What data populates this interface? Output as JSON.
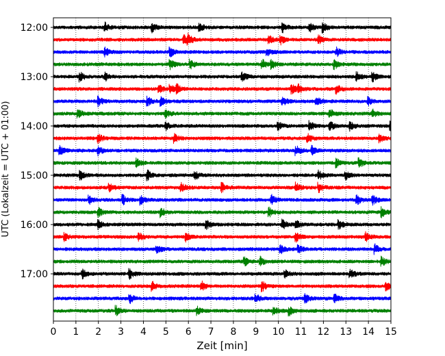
{
  "chart_data": {
    "type": "line",
    "title": "",
    "xlabel": "Zeit  [min]",
    "ylabel": "UTC (Lokalzeit = UTC + 01:00)",
    "xlim": [
      0,
      15
    ],
    "x_ticks": [
      0,
      1,
      2,
      3,
      4,
      5,
      6,
      7,
      8,
      9,
      10,
      11,
      12,
      13,
      14,
      15
    ],
    "x_tick_labels": [
      "0",
      "1",
      "2",
      "3",
      "4",
      "5",
      "6",
      "7",
      "8",
      "9",
      "10",
      "11",
      "12",
      "13",
      "14",
      "15"
    ],
    "y_tick_labels": [
      "12:00",
      "13:00",
      "14:00",
      "15:00",
      "16:00",
      "17:00"
    ],
    "grid": {
      "x": "dotted",
      "y": false
    },
    "traces_per_hour": 4,
    "trace_minutes": 15,
    "color_cycle": [
      "#000000",
      "#ff0000",
      "#0000ff",
      "#008000"
    ],
    "series": [
      {
        "start": "12:00",
        "events": [
          2.3,
          4.4,
          6.5,
          10.2,
          11.4,
          12.0
        ]
      },
      {
        "start": "12:15",
        "events": [
          5.8,
          6.0,
          9.6,
          10.1,
          11.8
        ]
      },
      {
        "start": "12:30",
        "events": [
          2.3,
          5.2,
          9.5,
          12.6
        ]
      },
      {
        "start": "12:45",
        "events": [
          5.2,
          6.1,
          9.3,
          9.7,
          12.5
        ]
      },
      {
        "start": "13:00",
        "events": [
          1.2,
          2.3,
          8.4,
          13.5,
          14.2
        ]
      },
      {
        "start": "13:15",
        "events": [
          4.7,
          5.2,
          5.5,
          10.6,
          10.9,
          12.6
        ]
      },
      {
        "start": "13:30",
        "events": [
          2.0,
          4.2,
          4.8,
          10.2,
          11.7,
          14.0
        ]
      },
      {
        "start": "13:45",
        "events": [
          1.1,
          5.0,
          12.3,
          14.2
        ]
      },
      {
        "start": "14:00",
        "events": [
          5.0,
          10.0,
          11.4,
          12.3,
          13.2,
          15.0
        ]
      },
      {
        "start": "14:15",
        "events": [
          2.0,
          5.4,
          11.3,
          14.5
        ]
      },
      {
        "start": "14:30",
        "events": [
          0.3,
          2.0,
          10.8,
          11.5
        ]
      },
      {
        "start": "14:45",
        "events": [
          3.7,
          12.6,
          13.6
        ]
      },
      {
        "start": "15:00",
        "events": [
          1.2,
          4.2,
          6.3,
          11.8,
          13.0
        ]
      },
      {
        "start": "15:15",
        "events": [
          2.5,
          5.7,
          7.5,
          10.8,
          11.8
        ]
      },
      {
        "start": "15:30",
        "events": [
          1.6,
          3.1,
          3.9,
          9.7,
          13.5,
          14.2
        ]
      },
      {
        "start": "15:45",
        "events": [
          2.0,
          4.8,
          9.6,
          14.6
        ]
      },
      {
        "start": "16:00",
        "events": [
          2.0,
          6.8,
          10.2,
          10.8,
          12.7
        ]
      },
      {
        "start": "16:15",
        "events": [
          0.5,
          3.8,
          5.9,
          10.8,
          13.9
        ]
      },
      {
        "start": "16:30",
        "events": [
          4.6,
          10.1,
          10.9,
          14.3
        ]
      },
      {
        "start": "16:45",
        "events": [
          8.5,
          9.2,
          14.6
        ]
      },
      {
        "start": "17:00",
        "events": [
          1.3,
          3.4,
          10.3,
          13.2
        ]
      },
      {
        "start": "17:15",
        "events": [
          4.4,
          6.6,
          9.3,
          14.8
        ]
      },
      {
        "start": "17:30",
        "events": [
          3.4,
          9.0,
          11.2,
          12.5
        ]
      },
      {
        "start": "17:45",
        "events": [
          2.8,
          6.4,
          9.8,
          10.5
        ]
      }
    ]
  }
}
